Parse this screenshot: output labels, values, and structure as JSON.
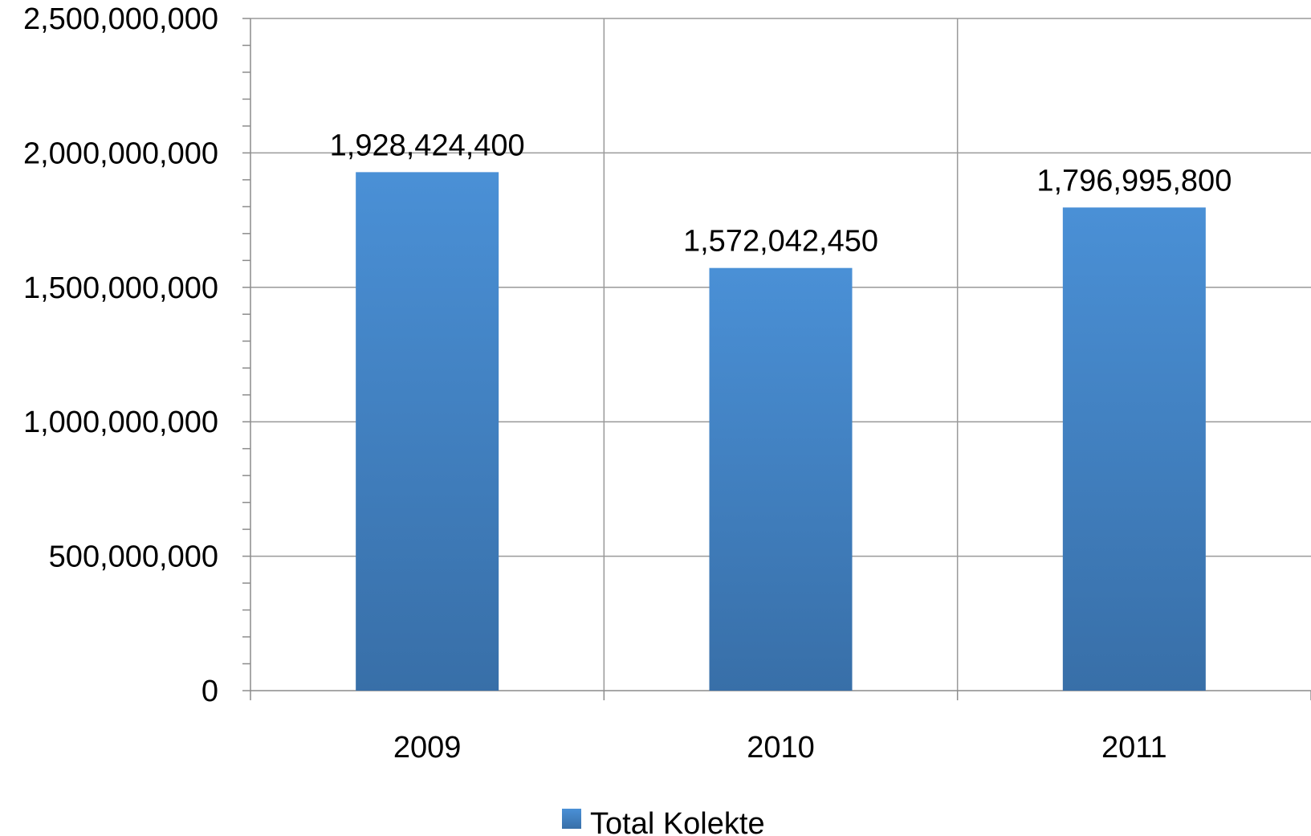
{
  "chart_data": {
    "type": "bar",
    "title": "",
    "xlabel": "",
    "ylabel": "",
    "categories": [
      "2009",
      "2010",
      "2011"
    ],
    "series": [
      {
        "name": "Total Kolekte",
        "values": [
          1928424400,
          1572042450,
          1796995800
        ],
        "data_labels": [
          "1,928,424,400",
          "1,572,042,450",
          "1,796,995,800"
        ]
      }
    ],
    "ylim": [
      0,
      2500000000
    ],
    "yticks": [
      0,
      500000000,
      1000000000,
      1500000000,
      2000000000,
      2500000000
    ],
    "ytick_labels": [
      "0",
      "500,000,000",
      "1,000,000,000",
      "1,500,000,000",
      "2,000,000,000",
      "2,500,000,000"
    ],
    "minor_ticks_per_major": 5,
    "grid": true,
    "legend": "bottom",
    "colors": {
      "bar_top": "#4a90d6",
      "bar_bottom": "#386fa8",
      "grid": "#9a9a9a",
      "axis": "#8c8c8c",
      "legend_swatch_top": "#4a90d6",
      "legend_swatch_bottom": "#386fa8"
    }
  }
}
